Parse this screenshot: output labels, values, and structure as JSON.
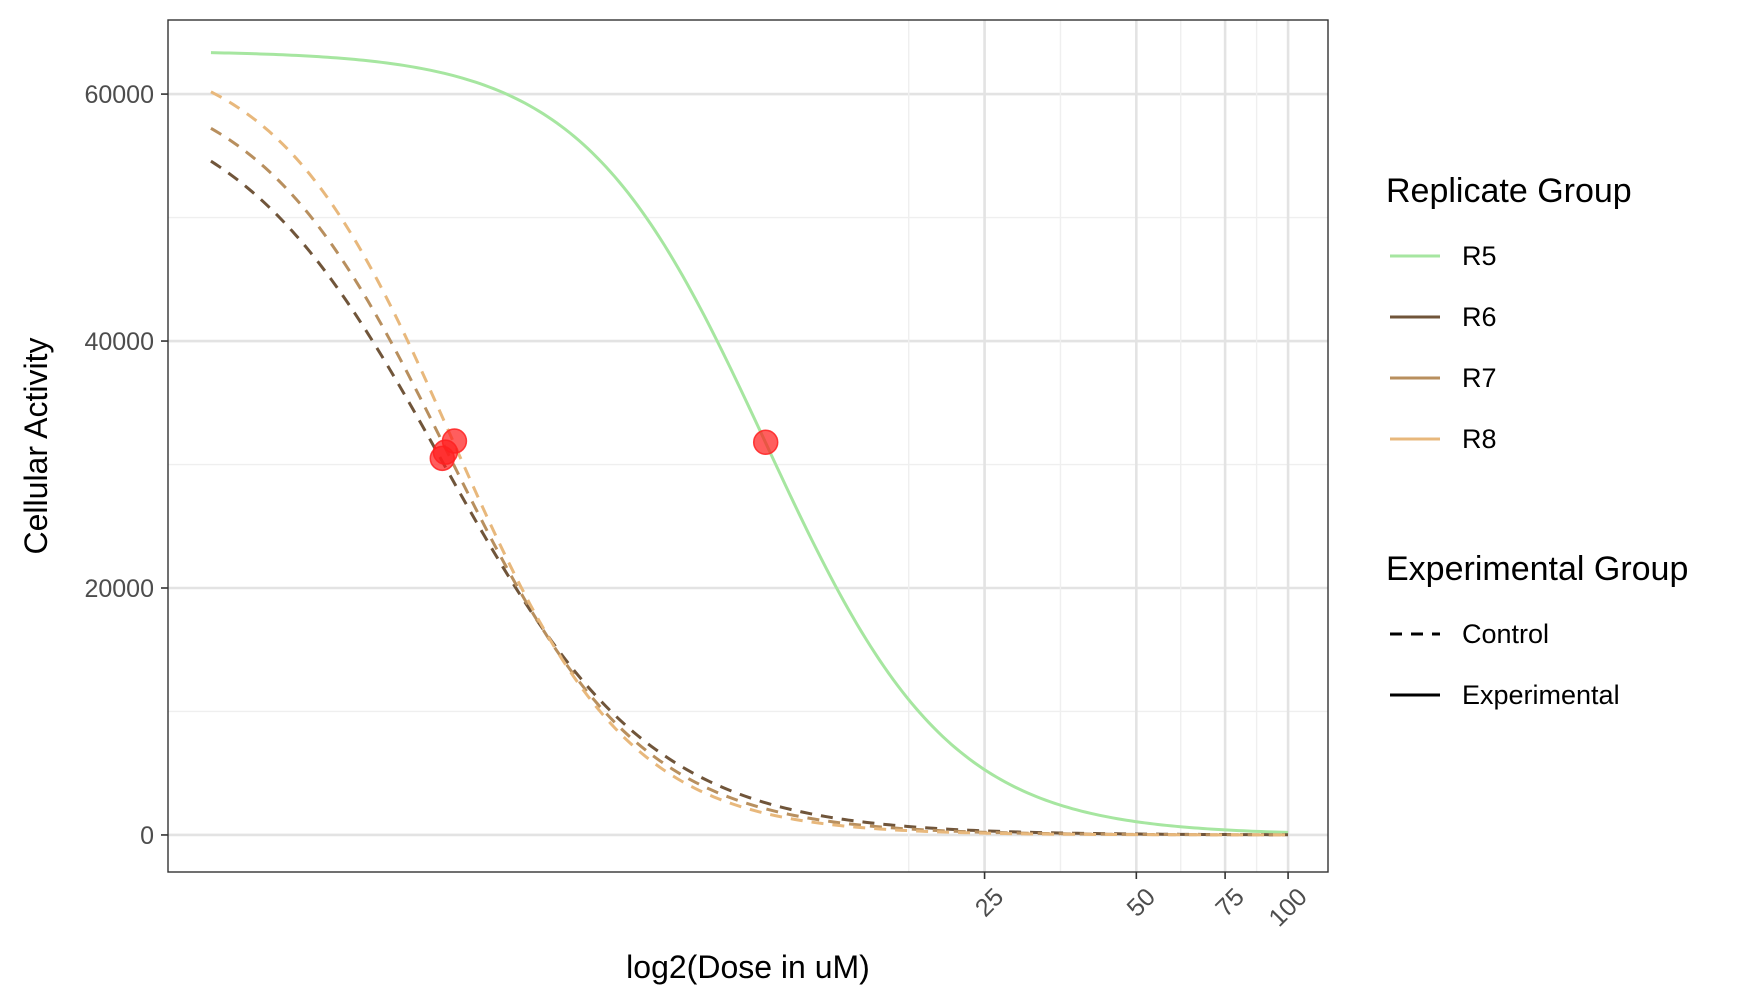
{
  "chart_data": {
    "type": "line",
    "xlabel": "log2(Dose in uM)",
    "ylabel": "Cellular Activity",
    "x_scale": "log2",
    "xlim": [
      0.6,
      120
    ],
    "ylim": [
      -3000,
      66000
    ],
    "x_ticks": [
      25,
      50,
      75,
      100
    ],
    "x_tick_labels": [
      "25",
      "50",
      "75",
      "100"
    ],
    "y_ticks": [
      0,
      20000,
      40000,
      60000
    ],
    "y_tick_labels": [
      "0",
      "20000",
      "40000",
      "60000"
    ],
    "grid": true,
    "legend_position": "right",
    "legends": [
      {
        "title": "Replicate Group",
        "entries": [
          {
            "label": "R5",
            "color": "#a6e6a0",
            "dash": "solid"
          },
          {
            "label": "R6",
            "color": "#70553a",
            "dash": "solid"
          },
          {
            "label": "R7",
            "color": "#b88f5e",
            "dash": "solid"
          },
          {
            "label": "R8",
            "color": "#e8b87c",
            "dash": "solid"
          }
        ]
      },
      {
        "title": "Experimental Group",
        "entries": [
          {
            "label": "Control",
            "color": "#000000",
            "dash": "dashed"
          },
          {
            "label": "Experimental",
            "color": "#000000",
            "dash": "solid"
          }
        ]
      }
    ],
    "series": [
      {
        "name": "R5",
        "group": "Experimental",
        "color": "#a6e6a0",
        "dash": "solid",
        "top": 63500,
        "bottom": 0,
        "ec50": 9.2,
        "hill": 2.4,
        "x_range": [
          0.73,
          100
        ]
      },
      {
        "name": "R6",
        "group": "Control",
        "color": "#70553a",
        "dash": "dashed",
        "top": 60500,
        "bottom": 0,
        "ec50": 2.1,
        "hill": 2.1,
        "x_range": [
          0.73,
          100
        ]
      },
      {
        "name": "R7",
        "group": "Control",
        "color": "#b88f5e",
        "dash": "dashed",
        "top": 62000,
        "bottom": 0,
        "ec50": 2.15,
        "hill": 2.3,
        "x_range": [
          0.73,
          100
        ]
      },
      {
        "name": "R8",
        "group": "Control",
        "color": "#e8b87c",
        "dash": "dashed",
        "top": 64000,
        "bottom": 0,
        "ec50": 2.2,
        "hill": 2.5,
        "x_range": [
          0.73,
          100
        ]
      }
    ],
    "points": [
      {
        "series": "R5",
        "x": 9.2,
        "y": 31800,
        "color": "#ff2020"
      },
      {
        "series": "R6",
        "x": 2.1,
        "y": 30500,
        "color": "#ff2020"
      },
      {
        "series": "R7",
        "x": 2.13,
        "y": 31000,
        "color": "#ff2020"
      },
      {
        "series": "R8",
        "x": 2.22,
        "y": 31900,
        "color": "#ff2020"
      }
    ]
  }
}
